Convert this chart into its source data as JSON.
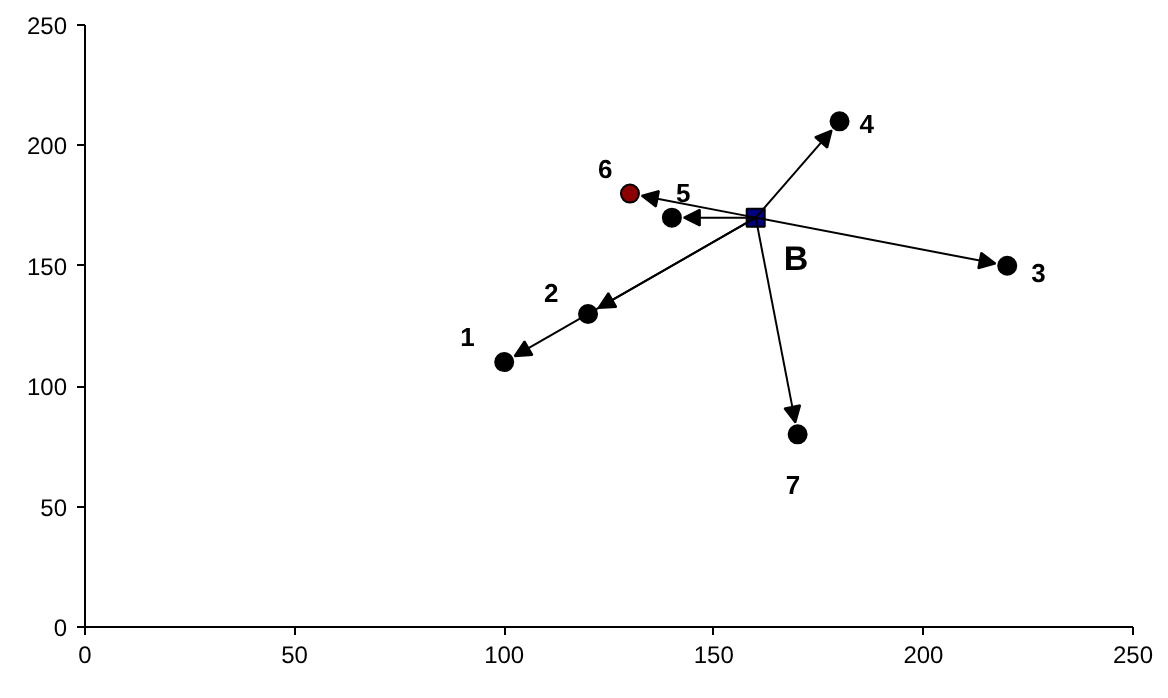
{
  "chart_data": {
    "type": "scatter",
    "series": [
      {
        "x": [
          100,
          120,
          220,
          180,
          140,
          130,
          170
        ],
        "values": [
          110,
          130,
          150,
          210,
          170,
          180,
          80
        ],
        "colors": [
          "#000000",
          "#000000",
          "#000000",
          "#000000",
          "#000000",
          "#8b0000",
          "#000000"
        ],
        "marker": "circle"
      },
      {
        "x": [
          160
        ],
        "values": [
          170
        ],
        "color": "#000080",
        "marker": "square"
      }
    ],
    "annotations": [
      {
        "text": "1",
        "x": 100,
        "y": 110
      },
      {
        "text": "2",
        "x": 120,
        "y": 130
      },
      {
        "text": "3",
        "x": 220,
        "y": 150
      },
      {
        "text": "4",
        "x": 180,
        "y": 210
      },
      {
        "text": "5",
        "x": 140,
        "y": 170
      },
      {
        "text": "6",
        "x": 130,
        "y": 180
      },
      {
        "text": "7",
        "x": 170,
        "y": 80
      },
      {
        "text": "B",
        "x": 160,
        "y": 170
      }
    ],
    "xlim": [
      0,
      250
    ],
    "ylim": [
      0,
      250
    ],
    "xticks": [
      0,
      50,
      100,
      150,
      200,
      250
    ],
    "yticks": [
      0,
      50,
      100,
      150,
      200,
      250
    ],
    "grid": false
  }
}
